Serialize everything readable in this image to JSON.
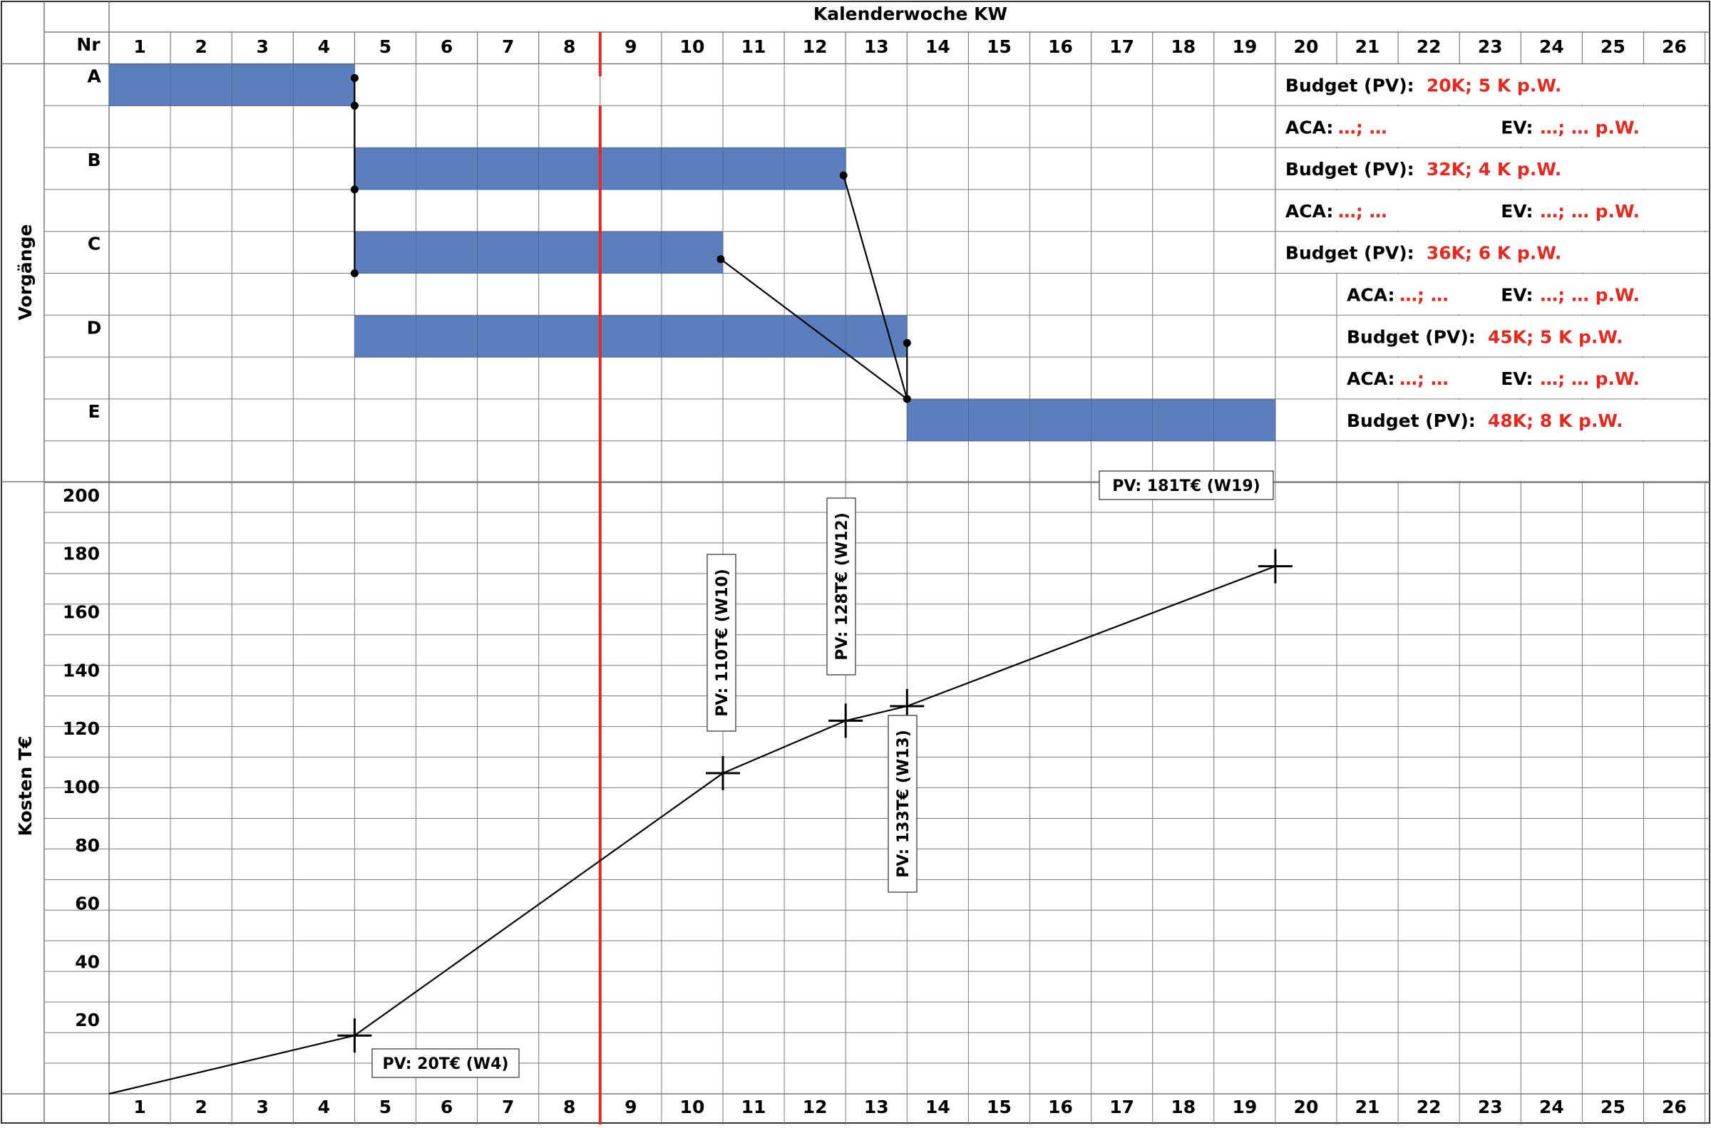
{
  "header": {
    "title": "Kalenderwoche KW",
    "nr_label": "Nr"
  },
  "side_labels": {
    "activities": "Vorgänge",
    "costs": "Kosten T€"
  },
  "weeks": [
    "1",
    "2",
    "3",
    "4",
    "5",
    "6",
    "7",
    "8",
    "9",
    "10",
    "11",
    "12",
    "13",
    "14",
    "15",
    "16",
    "17",
    "18",
    "19",
    "20",
    "21",
    "22",
    "23",
    "24",
    "25",
    "26"
  ],
  "colors": {
    "bar": "#5b7fbd",
    "status_line": "#e8281e",
    "grid": "#7a7a7a",
    "accent_text": "#e8281e"
  },
  "activities": [
    {
      "id": "A",
      "start_week": 1,
      "end_week": 4,
      "budget_label": "Budget (PV):",
      "budget_value": "20K; 5 K p.W.",
      "aca_label": "ACA:",
      "aca_value": "…; …",
      "ev_label": "EV:",
      "ev_value": "…; … p.W."
    },
    {
      "id": "B",
      "start_week": 5,
      "end_week": 12,
      "budget_label": "Budget (PV):",
      "budget_value": "32K; 4 K p.W.",
      "aca_label": "ACA:",
      "aca_value": "…; …",
      "ev_label": "EV:",
      "ev_value": "…; … p.W."
    },
    {
      "id": "C",
      "start_week": 5,
      "end_week": 10,
      "budget_label": "Budget (PV):",
      "budget_value": "36K; 6 K p.W.",
      "aca_label": "ACA:",
      "aca_value": "…; …",
      "ev_label": "EV:",
      "ev_value": "…; … p.W."
    },
    {
      "id": "D",
      "start_week": 5,
      "end_week": 13,
      "budget_label": "Budget (PV):",
      "budget_value": "45K; 5 K p.W.",
      "aca_label": "ACA:",
      "aca_value": "…; …",
      "ev_label": "EV:",
      "ev_value": "…; … p.W."
    },
    {
      "id": "E",
      "start_week": 14,
      "end_week": 19,
      "budget_label": "Budget (PV):",
      "budget_value": "48K; 8 K p.W."
    }
  ],
  "dependencies": [
    {
      "from": "A",
      "to": "B"
    },
    {
      "from": "A",
      "to": "C"
    },
    {
      "from": "A",
      "to": "D"
    },
    {
      "from": "B",
      "to": "E"
    },
    {
      "from": "C",
      "to": "E"
    },
    {
      "from": "D",
      "to": "E"
    }
  ],
  "status_line_after_week": 8,
  "chart_data": {
    "type": "line",
    "ylabel": "Kosten T€",
    "xlabel": "",
    "ylim": [
      0,
      200
    ],
    "y_ticks": [
      "20",
      "40",
      "60",
      "80",
      "100",
      "120",
      "140",
      "160",
      "180",
      "200"
    ],
    "x_ticks": [
      "1",
      "2",
      "3",
      "4",
      "5",
      "6",
      "7",
      "8",
      "9",
      "10",
      "11",
      "12",
      "13",
      "14",
      "15",
      "16",
      "17",
      "18",
      "19",
      "20",
      "21",
      "22",
      "23",
      "24",
      "25",
      "26"
    ],
    "grid": true,
    "series": [
      {
        "points": [
          {
            "x": 0,
            "y": 0
          },
          {
            "x": 4,
            "y": 20
          },
          {
            "x": 10,
            "y": 110
          },
          {
            "x": 12,
            "y": 128
          },
          {
            "x": 13,
            "y": 133
          },
          {
            "x": 19,
            "y": 181
          }
        ]
      }
    ],
    "annotations": [
      {
        "week": 4,
        "value": 20,
        "text": "PV: 20T€ (W4)",
        "orientation": "horizontal"
      },
      {
        "week": 10,
        "value": 110,
        "text": "PV: 110T€ (W10)",
        "orientation": "vertical"
      },
      {
        "week": 12,
        "value": 128,
        "text": "PV: 128T€ (W12)",
        "orientation": "vertical"
      },
      {
        "week": 13,
        "value": 133,
        "text": "PV: 133T€ (W13)",
        "orientation": "vertical"
      },
      {
        "week": 19,
        "value": 181,
        "text": "PV: 181T€ (W19)",
        "orientation": "horizontal"
      }
    ]
  }
}
